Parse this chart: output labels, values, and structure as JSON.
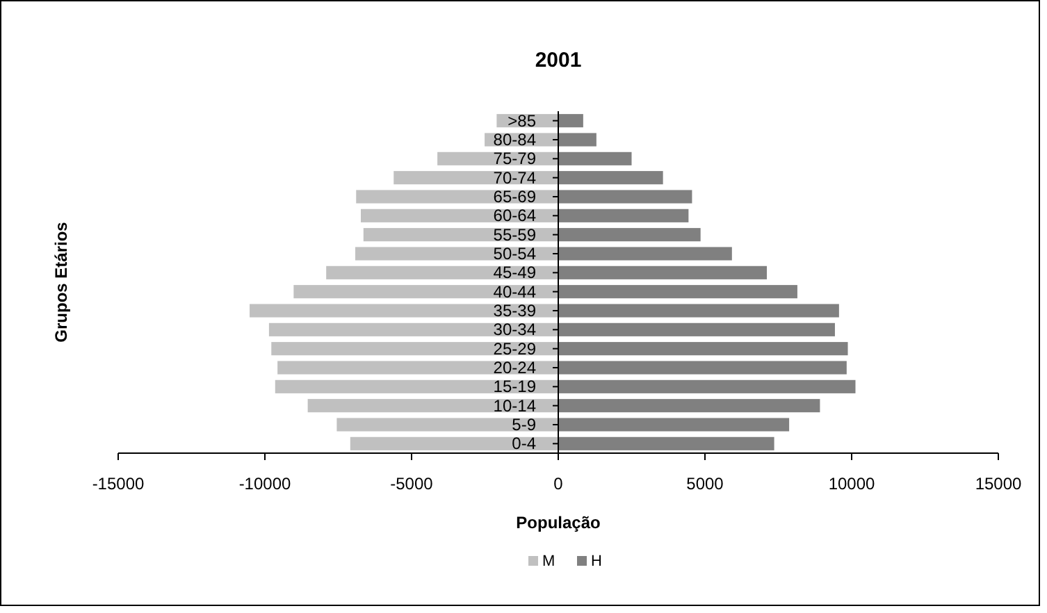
{
  "chart_data": {
    "type": "bar",
    "orientation": "horizontal",
    "title": "2001",
    "xlabel": "População",
    "ylabel": "Grupos Etários",
    "categories": [
      ">85",
      "80-84",
      "75-79",
      "70-74",
      "65-69",
      "60-64",
      "55-59",
      "50-54",
      "45-49",
      "40-44",
      "35-39",
      "30-34",
      "25-29",
      "20-24",
      "15-19",
      "10-14",
      "5-9",
      "0-4"
    ],
    "series": [
      {
        "name": "M",
        "color": "#c0c0c0",
        "values": [
          -2100,
          -2510,
          -4120,
          -5610,
          -6890,
          -6730,
          -6640,
          -6920,
          -7910,
          -9020,
          -10520,
          -9860,
          -9780,
          -9570,
          -9650,
          -8540,
          -7550,
          -7090
        ]
      },
      {
        "name": "H",
        "color": "#808080",
        "values": [
          850,
          1300,
          2500,
          3570,
          4560,
          4440,
          4850,
          5920,
          7110,
          8150,
          9570,
          9430,
          9870,
          9830,
          10130,
          8920,
          7870,
          7360
        ]
      }
    ],
    "xlim": [
      -15000,
      15000
    ],
    "xticks": [
      -15000,
      -10000,
      -5000,
      0,
      5000,
      10000,
      15000
    ],
    "grid": false,
    "legend": "bottom",
    "stacked": true
  }
}
